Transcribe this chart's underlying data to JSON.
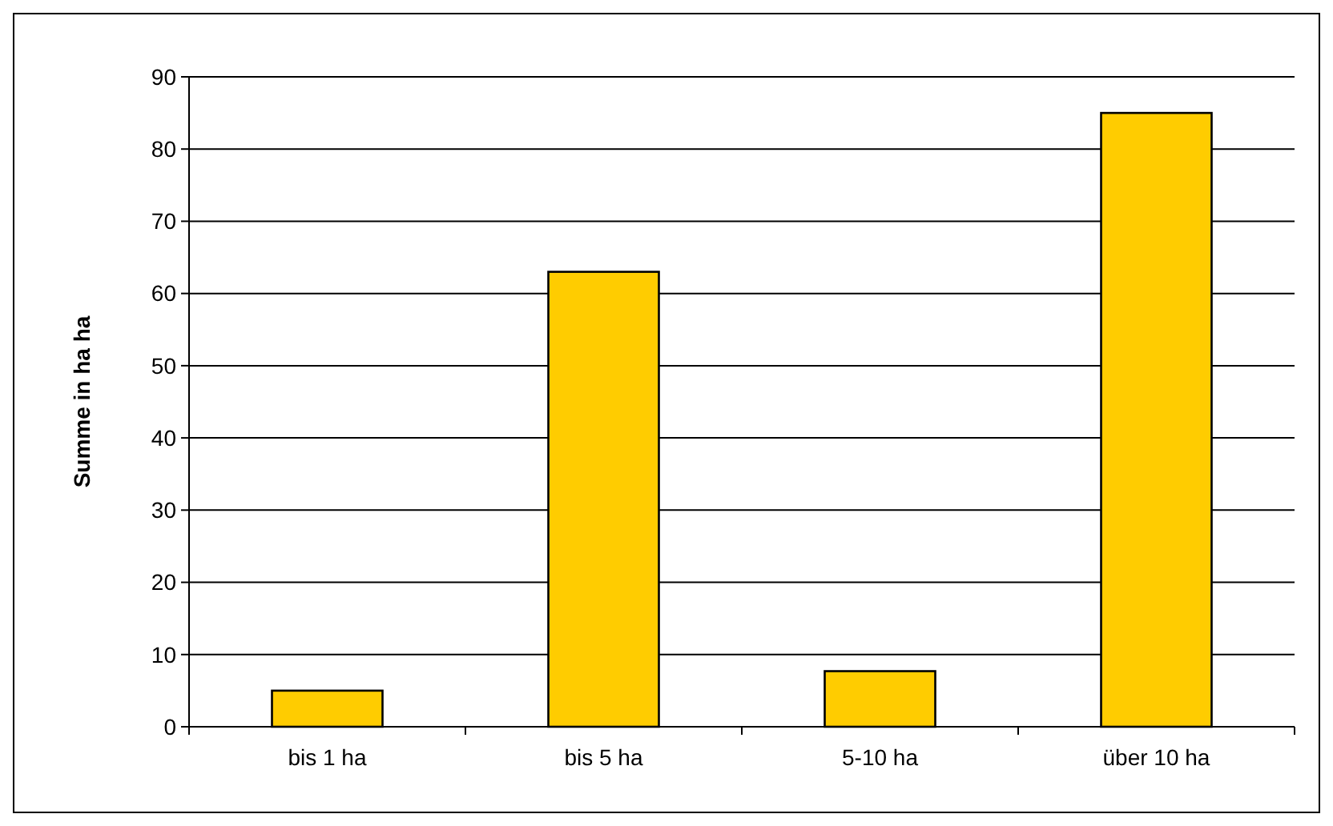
{
  "chart_data": {
    "type": "bar",
    "ylabel": "Summe in ha ha",
    "categories": [
      "bis 1 ha",
      "bis 5 ha",
      "5-10 ha",
      "über 10 ha"
    ],
    "values": [
      5,
      63,
      7.7,
      85
    ],
    "color": "#ffcc00",
    "ylim": [
      0,
      90
    ],
    "yticks": [
      0,
      10,
      20,
      30,
      40,
      50,
      60,
      70,
      80,
      90
    ],
    "grid": "y"
  }
}
